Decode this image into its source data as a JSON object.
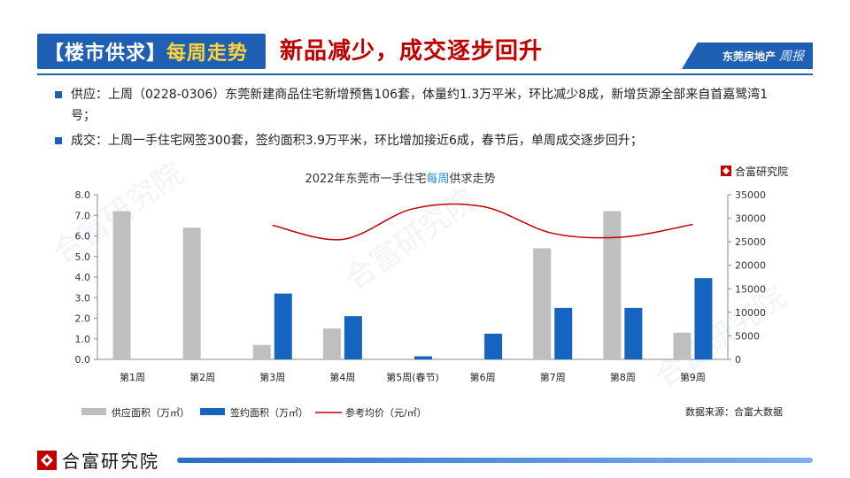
{
  "header": {
    "tag_left": "【楼市供求】",
    "tag_right": "每周走势",
    "headline": "新品减少，成交逐步回升",
    "brand_text": "东莞房地产",
    "brand_script": "周报"
  },
  "bullets": [
    "供应：上周（0228-0306）东莞新建商品住宅新增预售106套，体量约1.3万平米，环比减少8成，新增货源全部来自首嘉鹭湾1号；",
    "成交：上周一手住宅网签300套，签约面积3.9万平米，环比增加接近6成，春节后，单周成交逐步回升；"
  ],
  "chart_logo": "合富研究院",
  "source": "数据来源：合富大数据",
  "footer_logo": "合富研究院",
  "watermark": "合富研究院",
  "colors": {
    "supply": "#bfbfbf",
    "signed": "#1565c0",
    "price": "#c00000",
    "brand_blue": "#1f5fb4"
  },
  "chart_data": {
    "type": "bar",
    "title_pre": "2022年东莞市一手住宅",
    "title_hl": "每周",
    "title_post": "供求走势",
    "categories": [
      "第1周",
      "第2周",
      "第3周",
      "第4周",
      "第5周(春节)",
      "第6周",
      "第7周",
      "第8周",
      "第9周"
    ],
    "series": [
      {
        "name": "供应面积（万㎡）",
        "type": "bar",
        "axis": "left",
        "values": [
          7.2,
          6.4,
          0.7,
          1.5,
          0,
          0,
          5.4,
          7.2,
          1.3
        ]
      },
      {
        "name": "签约面积（万㎡）",
        "type": "bar",
        "axis": "left",
        "values": [
          0,
          0,
          3.2,
          2.1,
          0.15,
          1.25,
          2.5,
          2.5,
          3.95
        ]
      },
      {
        "name": "参考均价（元/㎡）",
        "type": "line",
        "axis": "right",
        "values": [
          null,
          null,
          28500,
          25500,
          32000,
          32500,
          26800,
          26000,
          28700
        ]
      }
    ],
    "ylim_left": [
      0,
      8
    ],
    "yticks_left": [
      "0.0",
      "1.0",
      "2.0",
      "3.0",
      "4.0",
      "5.0",
      "6.0",
      "7.0",
      "8.0"
    ],
    "ylim_right": [
      0,
      35000
    ],
    "yticks_right": [
      "0",
      "5000",
      "10000",
      "15000",
      "20000",
      "25000",
      "30000",
      "35000"
    ],
    "grid": false,
    "legend_position": "bottom"
  }
}
